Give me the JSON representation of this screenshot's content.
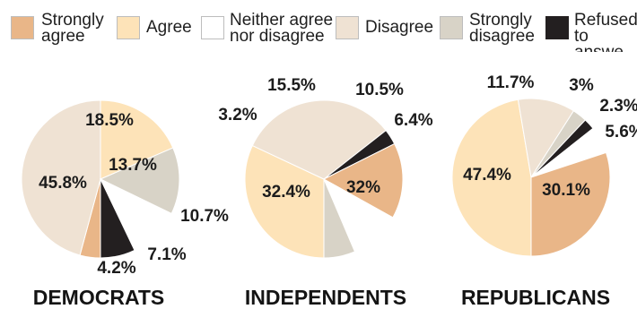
{
  "legend": [
    {
      "label": "Strongly\nagree",
      "color": "#e9b688"
    },
    {
      "label": "Agree",
      "color": "#fde3b8"
    },
    {
      "label": "Neither agree\nnor disagree",
      "color": "#ffffff"
    },
    {
      "label": "Disagree",
      "color": "#efe2d3"
    },
    {
      "label": "Strongly\ndisagree",
      "color": "#d8d3c7"
    },
    {
      "label": "Refused\nto answe",
      "color": "#231f20"
    }
  ],
  "chart_data": [
    {
      "type": "pie",
      "title": "DEMOCRATS",
      "categories": [
        "Strongly agree",
        "Agree",
        "Neither agree nor disagree",
        "Disagree",
        "Strongly disagree",
        "Refused to answer"
      ],
      "values": [
        4.2,
        18.5,
        10.7,
        45.8,
        13.7,
        7.1
      ],
      "labels": [
        "4.2%",
        "18.5%",
        "10.7%",
        "45.8%",
        "13.7%",
        "7.1%"
      ]
    },
    {
      "type": "pie",
      "title": "INDEPENDENTS",
      "categories": [
        "Strongly agree",
        "Agree",
        "Neither agree nor disagree",
        "Disagree",
        "Strongly disagree",
        "Refused to answer"
      ],
      "values": [
        15.5,
        32,
        10.5,
        32.4,
        6.4,
        3.2
      ],
      "labels": [
        "15.5%",
        "32%",
        "10.5%",
        "32.4%",
        "6.4%",
        "3.2%"
      ]
    },
    {
      "type": "pie",
      "title": "REPUBLICANS",
      "categories": [
        "Strongly agree",
        "Agree",
        "Neither agree nor disagree",
        "Disagree",
        "Strongly disagree",
        "Refused to answer"
      ],
      "values": [
        30.1,
        47.4,
        5.6,
        11.7,
        3,
        2.3
      ],
      "labels": [
        "30.1%",
        "47.4%",
        "5.6%",
        "11.7%",
        "3%",
        "2.3%"
      ]
    }
  ]
}
